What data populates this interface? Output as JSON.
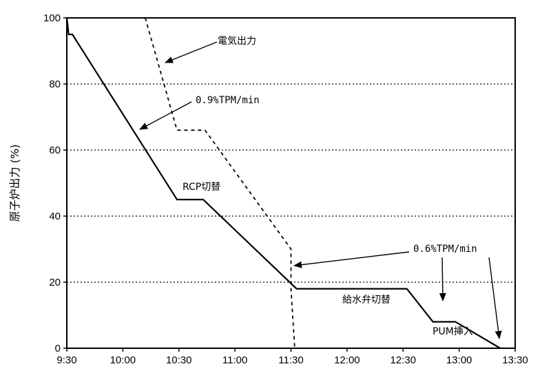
{
  "chart_data": {
    "type": "line",
    "title": "",
    "xlabel": "",
    "ylabel": "原子炉出力 (%)",
    "x_ticks": [
      "9:30",
      "10:00",
      "10:30",
      "11:00",
      "11:30",
      "12:00",
      "12:30",
      "13:00",
      "13:30"
    ],
    "y_ticks": [
      "0",
      "20",
      "40",
      "60",
      "80",
      "100"
    ],
    "xlim": [
      "9:30",
      "13:30"
    ],
    "ylim": [
      0,
      100
    ],
    "grid": {
      "horizontal_dotted_at": [
        20,
        40,
        60,
        80
      ]
    },
    "series": [
      {
        "style": "solid",
        "points": [
          {
            "x": "9:30",
            "y": 100
          },
          {
            "x": "9:31",
            "y": 95
          },
          {
            "x": "9:33",
            "y": 95
          },
          {
            "x": "10:29",
            "y": 45
          },
          {
            "x": "10:43",
            "y": 45
          },
          {
            "x": "11:33",
            "y": 18
          },
          {
            "x": "12:32",
            "y": 18
          },
          {
            "x": "12:46",
            "y": 8
          },
          {
            "x": "12:58",
            "y": 8
          },
          {
            "x": "13:22",
            "y": 0
          }
        ]
      },
      {
        "style": "dashed",
        "points": [
          {
            "x": "10:12",
            "y": 100
          },
          {
            "x": "10:29",
            "y": 66
          },
          {
            "x": "10:44",
            "y": 66
          },
          {
            "x": "11:30",
            "y": 30
          },
          {
            "x": "11:30",
            "y": 18
          },
          {
            "x": "11:32",
            "y": 0
          }
        ]
      }
    ],
    "annotations": [
      {
        "text": "電気出力"
      },
      {
        "text": "0.9%TPM/min"
      },
      {
        "text": "RCP切替"
      },
      {
        "text": "0.6%TPM/min"
      },
      {
        "text": "給水弁切替"
      },
      {
        "text": "PUM挿入"
      }
    ]
  }
}
